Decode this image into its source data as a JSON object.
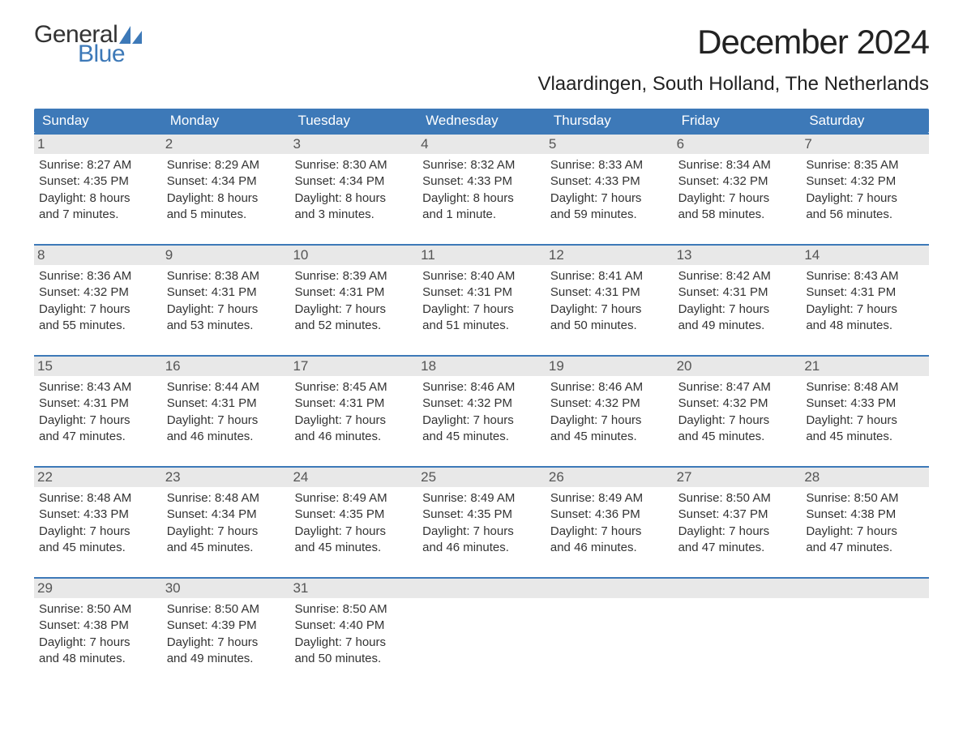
{
  "logo": {
    "word1": "General",
    "word2": "Blue",
    "icon_color": "#3d79b8"
  },
  "header": {
    "month_title": "December 2024",
    "location": "Vlaardingen, South Holland, The Netherlands"
  },
  "colors": {
    "header_bg": "#3d79b8",
    "daynum_bg": "#e8e8e8",
    "text": "#333333",
    "white": "#ffffff"
  },
  "days_of_week": [
    "Sunday",
    "Monday",
    "Tuesday",
    "Wednesday",
    "Thursday",
    "Friday",
    "Saturday"
  ],
  "days": [
    {
      "n": "1",
      "sunrise": "8:27 AM",
      "sunset": "4:35 PM",
      "daylight_l1": "Daylight: 8 hours",
      "daylight_l2": "and 7 minutes."
    },
    {
      "n": "2",
      "sunrise": "8:29 AM",
      "sunset": "4:34 PM",
      "daylight_l1": "Daylight: 8 hours",
      "daylight_l2": "and 5 minutes."
    },
    {
      "n": "3",
      "sunrise": "8:30 AM",
      "sunset": "4:34 PM",
      "daylight_l1": "Daylight: 8 hours",
      "daylight_l2": "and 3 minutes."
    },
    {
      "n": "4",
      "sunrise": "8:32 AM",
      "sunset": "4:33 PM",
      "daylight_l1": "Daylight: 8 hours",
      "daylight_l2": "and 1 minute."
    },
    {
      "n": "5",
      "sunrise": "8:33 AM",
      "sunset": "4:33 PM",
      "daylight_l1": "Daylight: 7 hours",
      "daylight_l2": "and 59 minutes."
    },
    {
      "n": "6",
      "sunrise": "8:34 AM",
      "sunset": "4:32 PM",
      "daylight_l1": "Daylight: 7 hours",
      "daylight_l2": "and 58 minutes."
    },
    {
      "n": "7",
      "sunrise": "8:35 AM",
      "sunset": "4:32 PM",
      "daylight_l1": "Daylight: 7 hours",
      "daylight_l2": "and 56 minutes."
    },
    {
      "n": "8",
      "sunrise": "8:36 AM",
      "sunset": "4:32 PM",
      "daylight_l1": "Daylight: 7 hours",
      "daylight_l2": "and 55 minutes."
    },
    {
      "n": "9",
      "sunrise": "8:38 AM",
      "sunset": "4:31 PM",
      "daylight_l1": "Daylight: 7 hours",
      "daylight_l2": "and 53 minutes."
    },
    {
      "n": "10",
      "sunrise": "8:39 AM",
      "sunset": "4:31 PM",
      "daylight_l1": "Daylight: 7 hours",
      "daylight_l2": "and 52 minutes."
    },
    {
      "n": "11",
      "sunrise": "8:40 AM",
      "sunset": "4:31 PM",
      "daylight_l1": "Daylight: 7 hours",
      "daylight_l2": "and 51 minutes."
    },
    {
      "n": "12",
      "sunrise": "8:41 AM",
      "sunset": "4:31 PM",
      "daylight_l1": "Daylight: 7 hours",
      "daylight_l2": "and 50 minutes."
    },
    {
      "n": "13",
      "sunrise": "8:42 AM",
      "sunset": "4:31 PM",
      "daylight_l1": "Daylight: 7 hours",
      "daylight_l2": "and 49 minutes."
    },
    {
      "n": "14",
      "sunrise": "8:43 AM",
      "sunset": "4:31 PM",
      "daylight_l1": "Daylight: 7 hours",
      "daylight_l2": "and 48 minutes."
    },
    {
      "n": "15",
      "sunrise": "8:43 AM",
      "sunset": "4:31 PM",
      "daylight_l1": "Daylight: 7 hours",
      "daylight_l2": "and 47 minutes."
    },
    {
      "n": "16",
      "sunrise": "8:44 AM",
      "sunset": "4:31 PM",
      "daylight_l1": "Daylight: 7 hours",
      "daylight_l2": "and 46 minutes."
    },
    {
      "n": "17",
      "sunrise": "8:45 AM",
      "sunset": "4:31 PM",
      "daylight_l1": "Daylight: 7 hours",
      "daylight_l2": "and 46 minutes."
    },
    {
      "n": "18",
      "sunrise": "8:46 AM",
      "sunset": "4:32 PM",
      "daylight_l1": "Daylight: 7 hours",
      "daylight_l2": "and 45 minutes."
    },
    {
      "n": "19",
      "sunrise": "8:46 AM",
      "sunset": "4:32 PM",
      "daylight_l1": "Daylight: 7 hours",
      "daylight_l2": "and 45 minutes."
    },
    {
      "n": "20",
      "sunrise": "8:47 AM",
      "sunset": "4:32 PM",
      "daylight_l1": "Daylight: 7 hours",
      "daylight_l2": "and 45 minutes."
    },
    {
      "n": "21",
      "sunrise": "8:48 AM",
      "sunset": "4:33 PM",
      "daylight_l1": "Daylight: 7 hours",
      "daylight_l2": "and 45 minutes."
    },
    {
      "n": "22",
      "sunrise": "8:48 AM",
      "sunset": "4:33 PM",
      "daylight_l1": "Daylight: 7 hours",
      "daylight_l2": "and 45 minutes."
    },
    {
      "n": "23",
      "sunrise": "8:48 AM",
      "sunset": "4:34 PM",
      "daylight_l1": "Daylight: 7 hours",
      "daylight_l2": "and 45 minutes."
    },
    {
      "n": "24",
      "sunrise": "8:49 AM",
      "sunset": "4:35 PM",
      "daylight_l1": "Daylight: 7 hours",
      "daylight_l2": "and 45 minutes."
    },
    {
      "n": "25",
      "sunrise": "8:49 AM",
      "sunset": "4:35 PM",
      "daylight_l1": "Daylight: 7 hours",
      "daylight_l2": "and 46 minutes."
    },
    {
      "n": "26",
      "sunrise": "8:49 AM",
      "sunset": "4:36 PM",
      "daylight_l1": "Daylight: 7 hours",
      "daylight_l2": "and 46 minutes."
    },
    {
      "n": "27",
      "sunrise": "8:50 AM",
      "sunset": "4:37 PM",
      "daylight_l1": "Daylight: 7 hours",
      "daylight_l2": "and 47 minutes."
    },
    {
      "n": "28",
      "sunrise": "8:50 AM",
      "sunset": "4:38 PM",
      "daylight_l1": "Daylight: 7 hours",
      "daylight_l2": "and 47 minutes."
    },
    {
      "n": "29",
      "sunrise": "8:50 AM",
      "sunset": "4:38 PM",
      "daylight_l1": "Daylight: 7 hours",
      "daylight_l2": "and 48 minutes."
    },
    {
      "n": "30",
      "sunrise": "8:50 AM",
      "sunset": "4:39 PM",
      "daylight_l1": "Daylight: 7 hours",
      "daylight_l2": "and 49 minutes."
    },
    {
      "n": "31",
      "sunrise": "8:50 AM",
      "sunset": "4:40 PM",
      "daylight_l1": "Daylight: 7 hours",
      "daylight_l2": "and 50 minutes."
    }
  ],
  "labels": {
    "sunrise_prefix": "Sunrise: ",
    "sunset_prefix": "Sunset: "
  }
}
